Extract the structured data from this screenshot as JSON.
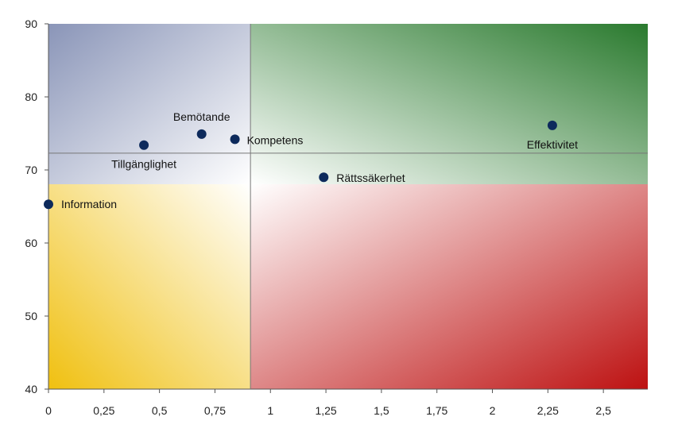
{
  "chart_data": {
    "type": "scatter",
    "title": "",
    "xlabel": "",
    "ylabel": "",
    "xlim": [
      0,
      2.7
    ],
    "ylim": [
      40,
      90
    ],
    "x_ticks": [
      "0",
      "0,25",
      "0,5",
      "0,75",
      "1",
      "1,25",
      "1,5",
      "1,75",
      "2",
      "2,25",
      "2,5"
    ],
    "y_ticks": [
      "40",
      "50",
      "60",
      "70",
      "80",
      "90"
    ],
    "reference_lines": {
      "x": 0.91,
      "y": 72.3
    },
    "quadrant_colors": {
      "top_left": "#8896b8",
      "top_right": "#2e7d32",
      "bottom_left": "#f2c418",
      "bottom_right": "#c01818"
    },
    "point_color": "#0d2a5c",
    "points": [
      {
        "label": "Information",
        "x": 0.0,
        "y": 65.3
      },
      {
        "label": "Tillgänglighet",
        "x": 0.43,
        "y": 73.4
      },
      {
        "label": "Bemötande",
        "x": 0.69,
        "y": 74.9
      },
      {
        "label": "Kompetens",
        "x": 0.84,
        "y": 74.2
      },
      {
        "label": "Rättssäkerhet",
        "x": 1.24,
        "y": 69.0
      },
      {
        "label": "Effektivitet",
        "x": 2.27,
        "y": 76.1
      }
    ]
  }
}
